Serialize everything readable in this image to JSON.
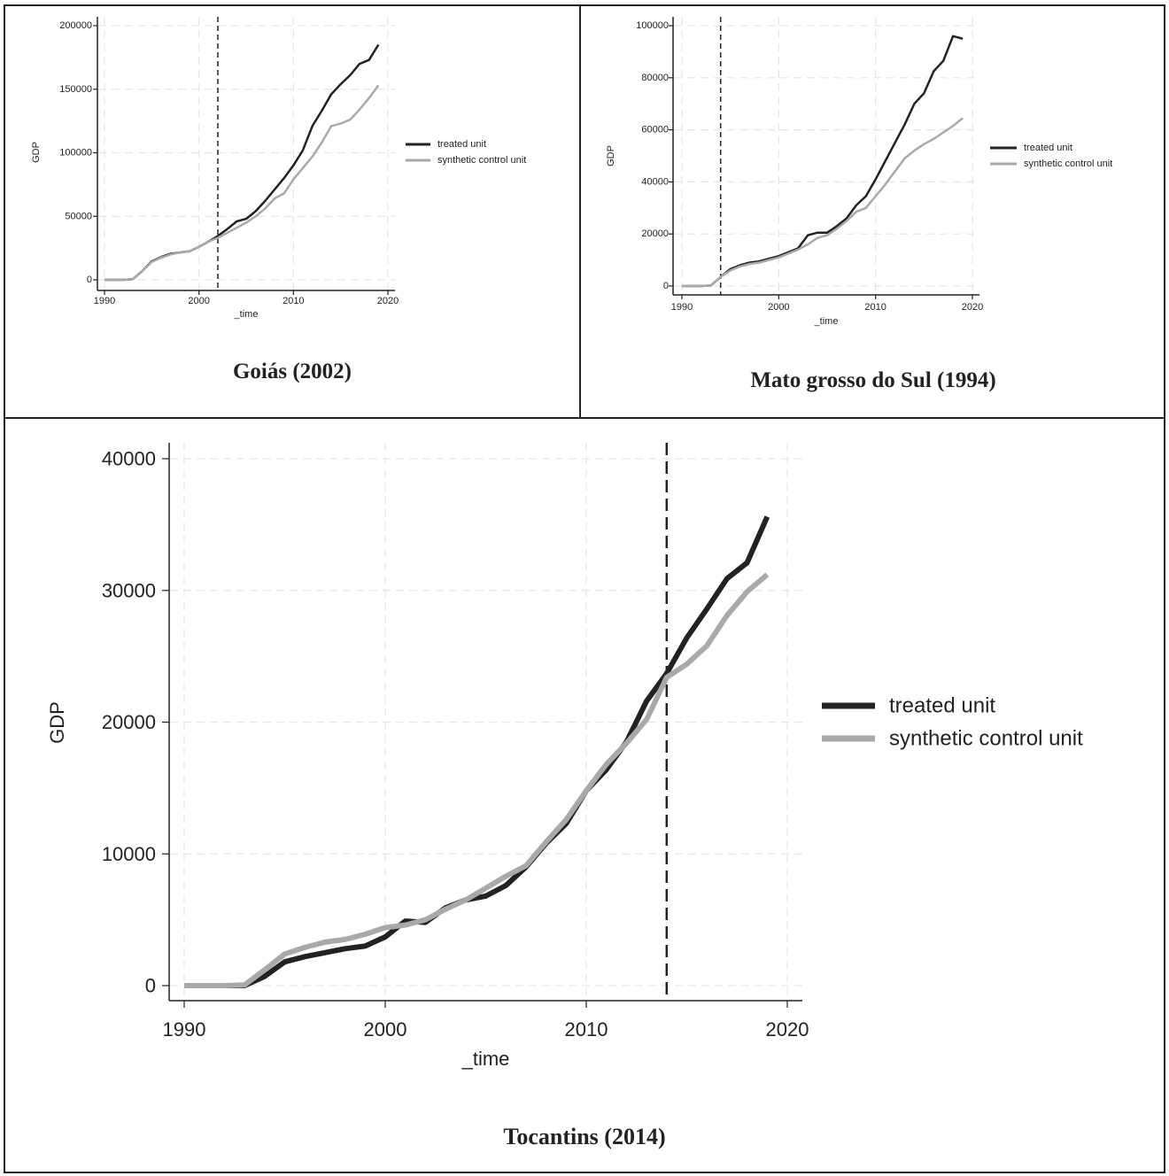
{
  "colors": {
    "treated": "#222222",
    "synthetic": "#a9a9ab",
    "grid": "#e6e6e6",
    "axis": "#222222"
  },
  "chart_data": [
    {
      "id": "goias",
      "caption": "Goiás (2002)",
      "type": "line",
      "xlabel": "_time",
      "ylabel": "GDP",
      "xlim": [
        1990,
        2020
      ],
      "ylim": [
        0,
        200000
      ],
      "xticks": [
        1990,
        2000,
        2010,
        2020
      ],
      "yticks": [
        0,
        50000,
        100000,
        150000,
        200000
      ],
      "ytick_labels": [
        "0",
        "50000",
        "100000",
        "150000",
        "200000"
      ],
      "intervention_year": 2002,
      "legend": [
        "treated unit",
        "synthetic control unit"
      ],
      "legend_position": "right",
      "grid": true,
      "x": [
        1990,
        1991,
        1992,
        1993,
        1994,
        1995,
        1996,
        1997,
        1998,
        1999,
        2000,
        2001,
        2002,
        2003,
        2004,
        2005,
        2006,
        2007,
        2008,
        2009,
        2010,
        2011,
        2012,
        2013,
        2014,
        2015,
        2016,
        2017,
        2018,
        2019
      ],
      "series": [
        {
          "name": "treated unit",
          "values": [
            0,
            0,
            0,
            500,
            7000,
            14500,
            18000,
            20500,
            21500,
            22500,
            26000,
            30000,
            34500,
            40000,
            46000,
            48000,
            54000,
            62000,
            71000,
            80000,
            90000,
            102000,
            121000,
            133000,
            146000,
            154000,
            161000,
            170000,
            173000,
            185000
          ]
        },
        {
          "name": "synthetic control unit",
          "values": [
            0,
            0,
            0,
            500,
            7000,
            14000,
            17500,
            20000,
            21500,
            22500,
            26000,
            30000,
            33000,
            37000,
            41000,
            45000,
            50000,
            56000,
            64000,
            68000,
            79000,
            88000,
            97000,
            108000,
            121000,
            123000,
            126000,
            134000,
            143000,
            153000
          ]
        }
      ]
    },
    {
      "id": "mato-grosso-do-sul",
      "caption": "Mato grosso do Sul (1994)",
      "type": "line",
      "xlabel": "_time",
      "ylabel": "GDP",
      "xlim": [
        1990,
        2020
      ],
      "ylim": [
        0,
        100000
      ],
      "xticks": [
        1990,
        2000,
        2010,
        2020
      ],
      "yticks": [
        0,
        20000,
        40000,
        60000,
        80000,
        100000
      ],
      "ytick_labels": [
        "0",
        "20000",
        "40000",
        "60000",
        "80000",
        "100000"
      ],
      "intervention_year": 1994,
      "legend": [
        "treated unit",
        "synthetic control unit"
      ],
      "legend_position": "right",
      "grid": true,
      "x": [
        1990,
        1991,
        1992,
        1993,
        1994,
        1995,
        1996,
        1997,
        1998,
        1999,
        2000,
        2001,
        2002,
        2003,
        2004,
        2005,
        2006,
        2007,
        2008,
        2009,
        2010,
        2011,
        2012,
        2013,
        2014,
        2015,
        2016,
        2017,
        2018,
        2019
      ],
      "series": [
        {
          "name": "treated unit",
          "values": [
            0,
            0,
            0,
            200,
            3500,
            6500,
            8000,
            9000,
            9500,
            10500,
            11500,
            13000,
            14500,
            19500,
            20500,
            20500,
            23000,
            26000,
            31000,
            34500,
            41000,
            48000,
            55000,
            62000,
            70000,
            74000,
            82500,
            86500,
            96000,
            95000
          ]
        },
        {
          "name": "synthetic control unit",
          "values": [
            0,
            0,
            0,
            200,
            3500,
            6000,
            7500,
            8500,
            9000,
            10000,
            11000,
            12500,
            14000,
            16000,
            18500,
            19500,
            22000,
            25000,
            28500,
            30000,
            34500,
            39000,
            44000,
            49000,
            52000,
            54500,
            56500,
            59000,
            61500,
            64500
          ]
        }
      ]
    },
    {
      "id": "tocantins",
      "caption": "Tocantins (2014)",
      "type": "line",
      "xlabel": "_time",
      "ylabel": "GDP",
      "xlim": [
        1990,
        2020
      ],
      "ylim": [
        0,
        40000
      ],
      "xticks": [
        1990,
        2000,
        2010,
        2020
      ],
      "yticks": [
        0,
        10000,
        20000,
        30000,
        40000
      ],
      "ytick_labels": [
        "0",
        "10000",
        "20000",
        "30000",
        "40000"
      ],
      "intervention_year": 2014,
      "legend": [
        "treated unit",
        "synthetic control unit"
      ],
      "legend_position": "right",
      "grid": true,
      "x": [
        1990,
        1991,
        1992,
        1993,
        1994,
        1995,
        1996,
        1997,
        1998,
        1999,
        2000,
        2001,
        2002,
        2003,
        2004,
        2005,
        2006,
        2007,
        2008,
        2009,
        2010,
        2011,
        2012,
        2013,
        2014,
        2015,
        2016,
        2017,
        2018,
        2019
      ],
      "series": [
        {
          "name": "treated unit",
          "values": [
            0,
            0,
            0,
            0,
            700,
            1800,
            2200,
            2500,
            2800,
            3000,
            3700,
            4900,
            4800,
            5900,
            6500,
            6800,
            7600,
            9000,
            10800,
            12300,
            14800,
            16400,
            18500,
            21600,
            23700,
            26400,
            28600,
            30900,
            32100,
            35600
          ]
        },
        {
          "name": "synthetic control unit",
          "values": [
            0,
            0,
            0,
            50,
            1200,
            2400,
            2900,
            3300,
            3500,
            3900,
            4400,
            4600,
            5000,
            5800,
            6500,
            7400,
            8300,
            9100,
            10900,
            12600,
            14800,
            16800,
            18400,
            20200,
            23400,
            24400,
            25800,
            28100,
            29900,
            31200
          ]
        }
      ]
    }
  ]
}
